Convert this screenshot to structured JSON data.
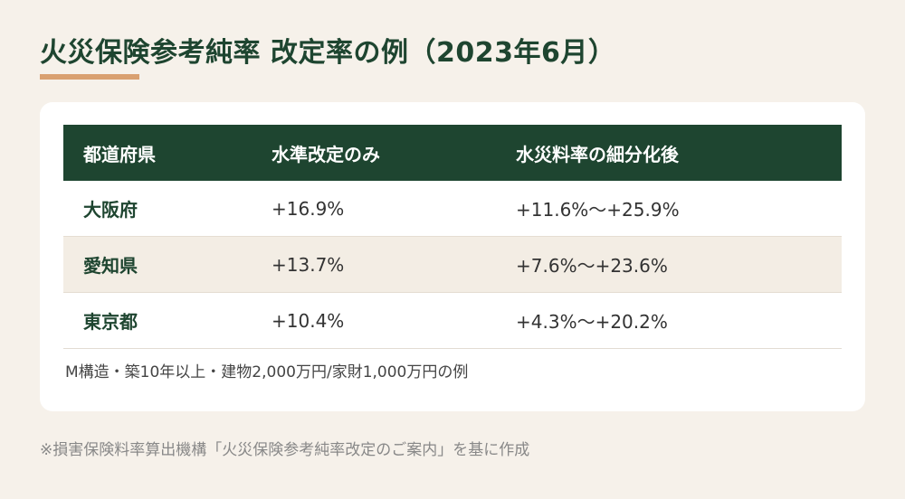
{
  "title": "火災保険参考純率 改定率の例（2023年6月）",
  "colors": {
    "accent_green": "#1e4530",
    "underline_orange": "#d9a070",
    "background": "#f6f1ea",
    "row_alt": "#f3ede4"
  },
  "table": {
    "headers": [
      "都道府県",
      "水準改定のみ",
      "水災料率の細分化後"
    ],
    "rows": [
      [
        "大阪府",
        "+16.9%",
        "+11.6%～+25.9%"
      ],
      [
        "愛知県",
        "+13.7%",
        "+7.6%～+23.6%"
      ],
      [
        "東京都",
        "+10.4%",
        "+4.3%～+20.2%"
      ]
    ]
  },
  "note": "M構造・築10年以上・建物2,000万円/家財1,000万円の例",
  "source": "※損害保険料率算出機構「火災保険参考純率改定のご案内」を基に作成"
}
